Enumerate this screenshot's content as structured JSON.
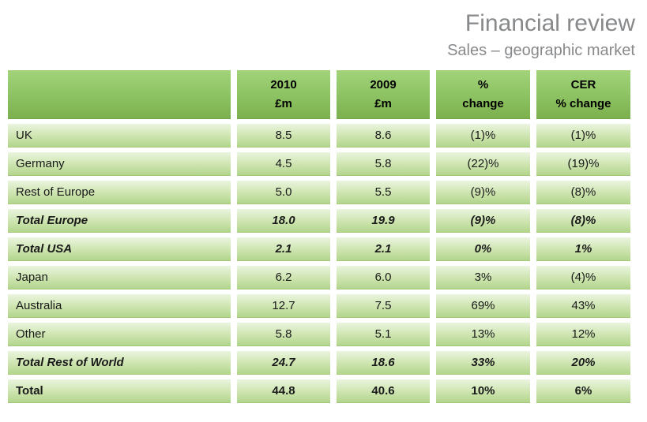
{
  "header": {
    "title": "Financial review",
    "subtitle": "Sales – geographic market"
  },
  "table": {
    "columns": [
      {
        "line1": "2010",
        "line2": "£m"
      },
      {
        "line1": "2009",
        "line2": "£m"
      },
      {
        "line1": "%",
        "line2": "change"
      },
      {
        "line1": "CER",
        "line2": "% change"
      }
    ],
    "rows": [
      {
        "label": "UK",
        "values": [
          "8.5",
          "8.6",
          "(1)%",
          "(1)%"
        ],
        "style": "normal"
      },
      {
        "label": "Germany",
        "values": [
          "4.5",
          "5.8",
          "(22)%",
          "(19)%"
        ],
        "style": "normal"
      },
      {
        "label": "Rest of Europe",
        "values": [
          "5.0",
          "5.5",
          "(9)%",
          "(8)%"
        ],
        "style": "normal"
      },
      {
        "label": "Total Europe",
        "values": [
          "18.0",
          "19.9",
          "(9)%",
          "(8)%"
        ],
        "style": "subtotal"
      },
      {
        "label": "Total USA",
        "values": [
          "2.1",
          "2.1",
          "0%",
          "1%"
        ],
        "style": "subtotal"
      },
      {
        "label": "Japan",
        "values": [
          "6.2",
          "6.0",
          "3%",
          "(4)%"
        ],
        "style": "normal"
      },
      {
        "label": "Australia",
        "values": [
          "12.7",
          "7.5",
          "69%",
          "43%"
        ],
        "style": "normal"
      },
      {
        "label": "Other",
        "values": [
          "5.8",
          "5.1",
          "13%",
          "12%"
        ],
        "style": "normal"
      },
      {
        "label": "Total Rest of World",
        "values": [
          "24.7",
          "18.6",
          "33%",
          "20%"
        ],
        "style": "subtotal"
      },
      {
        "label": "Total",
        "values": [
          "44.8",
          "40.6",
          "10%",
          "6%"
        ],
        "style": "total"
      }
    ]
  },
  "colors": {
    "header_green_top": "#a2d37b",
    "header_green_mid": "#8cc261",
    "header_green_bottom": "#7db04e",
    "row_green_top": "#eaf5de",
    "row_green_mid": "#cde4af",
    "row_green_bottom": "#b2d58c",
    "row_edge": "#a3c87c",
    "header_edge": "#74a546",
    "title_gray": "#87898b",
    "text_dark": "#1a1a1a"
  }
}
